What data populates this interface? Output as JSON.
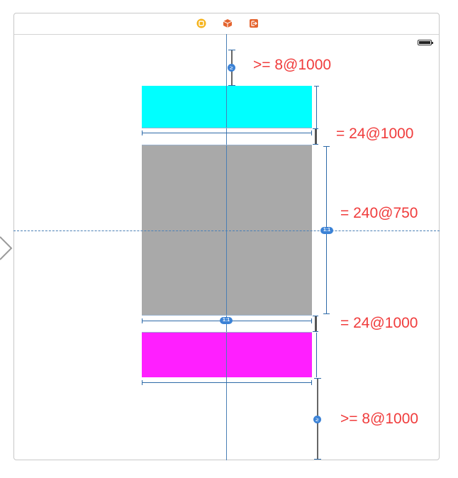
{
  "scene_dock": {
    "icons": [
      "view-controller-icon",
      "first-responder-icon",
      "exit-icon"
    ],
    "colors": {
      "view_controller": "#f5b31b",
      "first_responder": "#e4642f",
      "exit": "#e4642f"
    }
  },
  "status_bar": {
    "battery_icon": "battery-icon"
  },
  "views": {
    "top": {
      "color": "#00ffff"
    },
    "middle": {
      "color": "#a9a9a9"
    },
    "bottom": {
      "color": "#ff1fff"
    }
  },
  "constraint_badges": {
    "top_space": "≥",
    "aspect_ratio_side": "1:1",
    "aspect_ratio_bottom": "1:1",
    "bottom_space": "≥"
  },
  "annotations": {
    "top_space": ">= 8@1000",
    "gap_top": "= 24@1000",
    "height": "= 240@750",
    "gap_bottom": "= 24@1000",
    "bottom_space": ">= 8@1000"
  }
}
